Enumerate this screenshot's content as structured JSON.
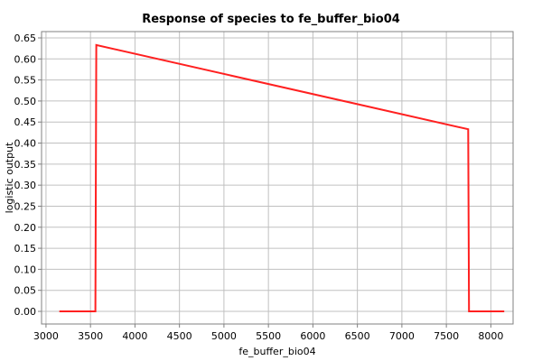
{
  "chart_data": {
    "type": "line",
    "title": "Response of species to fe_buffer_bio04",
    "xlabel": "fe_buffer_bio04",
    "ylabel": "logistic output",
    "xlim": [
      2950,
      8250
    ],
    "ylim": [
      -0.03,
      0.665
    ],
    "xticks": [
      3000,
      3500,
      4000,
      4500,
      5000,
      5500,
      6000,
      6500,
      7000,
      7500,
      8000
    ],
    "yticks": [
      0.0,
      0.05,
      0.1,
      0.15,
      0.2,
      0.25,
      0.3,
      0.35,
      0.4,
      0.45,
      0.5,
      0.55,
      0.6,
      0.65
    ],
    "grid": true,
    "series": [
      {
        "color": "#ff2020",
        "x": [
          3150,
          3555,
          3565,
          7745,
          7755,
          8150
        ],
        "y": [
          0.0,
          0.0,
          0.633,
          0.433,
          0.0,
          0.0
        ]
      }
    ]
  }
}
